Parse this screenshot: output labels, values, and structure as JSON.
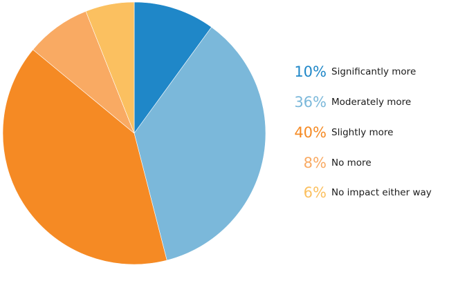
{
  "chart_data": {
    "type": "pie",
    "start_angle_deg": 0,
    "direction": "clockwise",
    "slices": [
      {
        "label": "Significantly more",
        "value": 10,
        "value_label": "10%",
        "color": "#1f87c8"
      },
      {
        "label": "Moderately more",
        "value": 36,
        "value_label": "36%",
        "color": "#7bb8da"
      },
      {
        "label": "Slightly more",
        "value": 40,
        "value_label": "40%",
        "color": "#f58a24"
      },
      {
        "label": "No more",
        "value": 8,
        "value_label": "8%",
        "color": "#f9aa63"
      },
      {
        "label": "No impact either way",
        "value": 6,
        "value_label": "6%",
        "color": "#fbc060"
      }
    ],
    "legend": "right"
  }
}
